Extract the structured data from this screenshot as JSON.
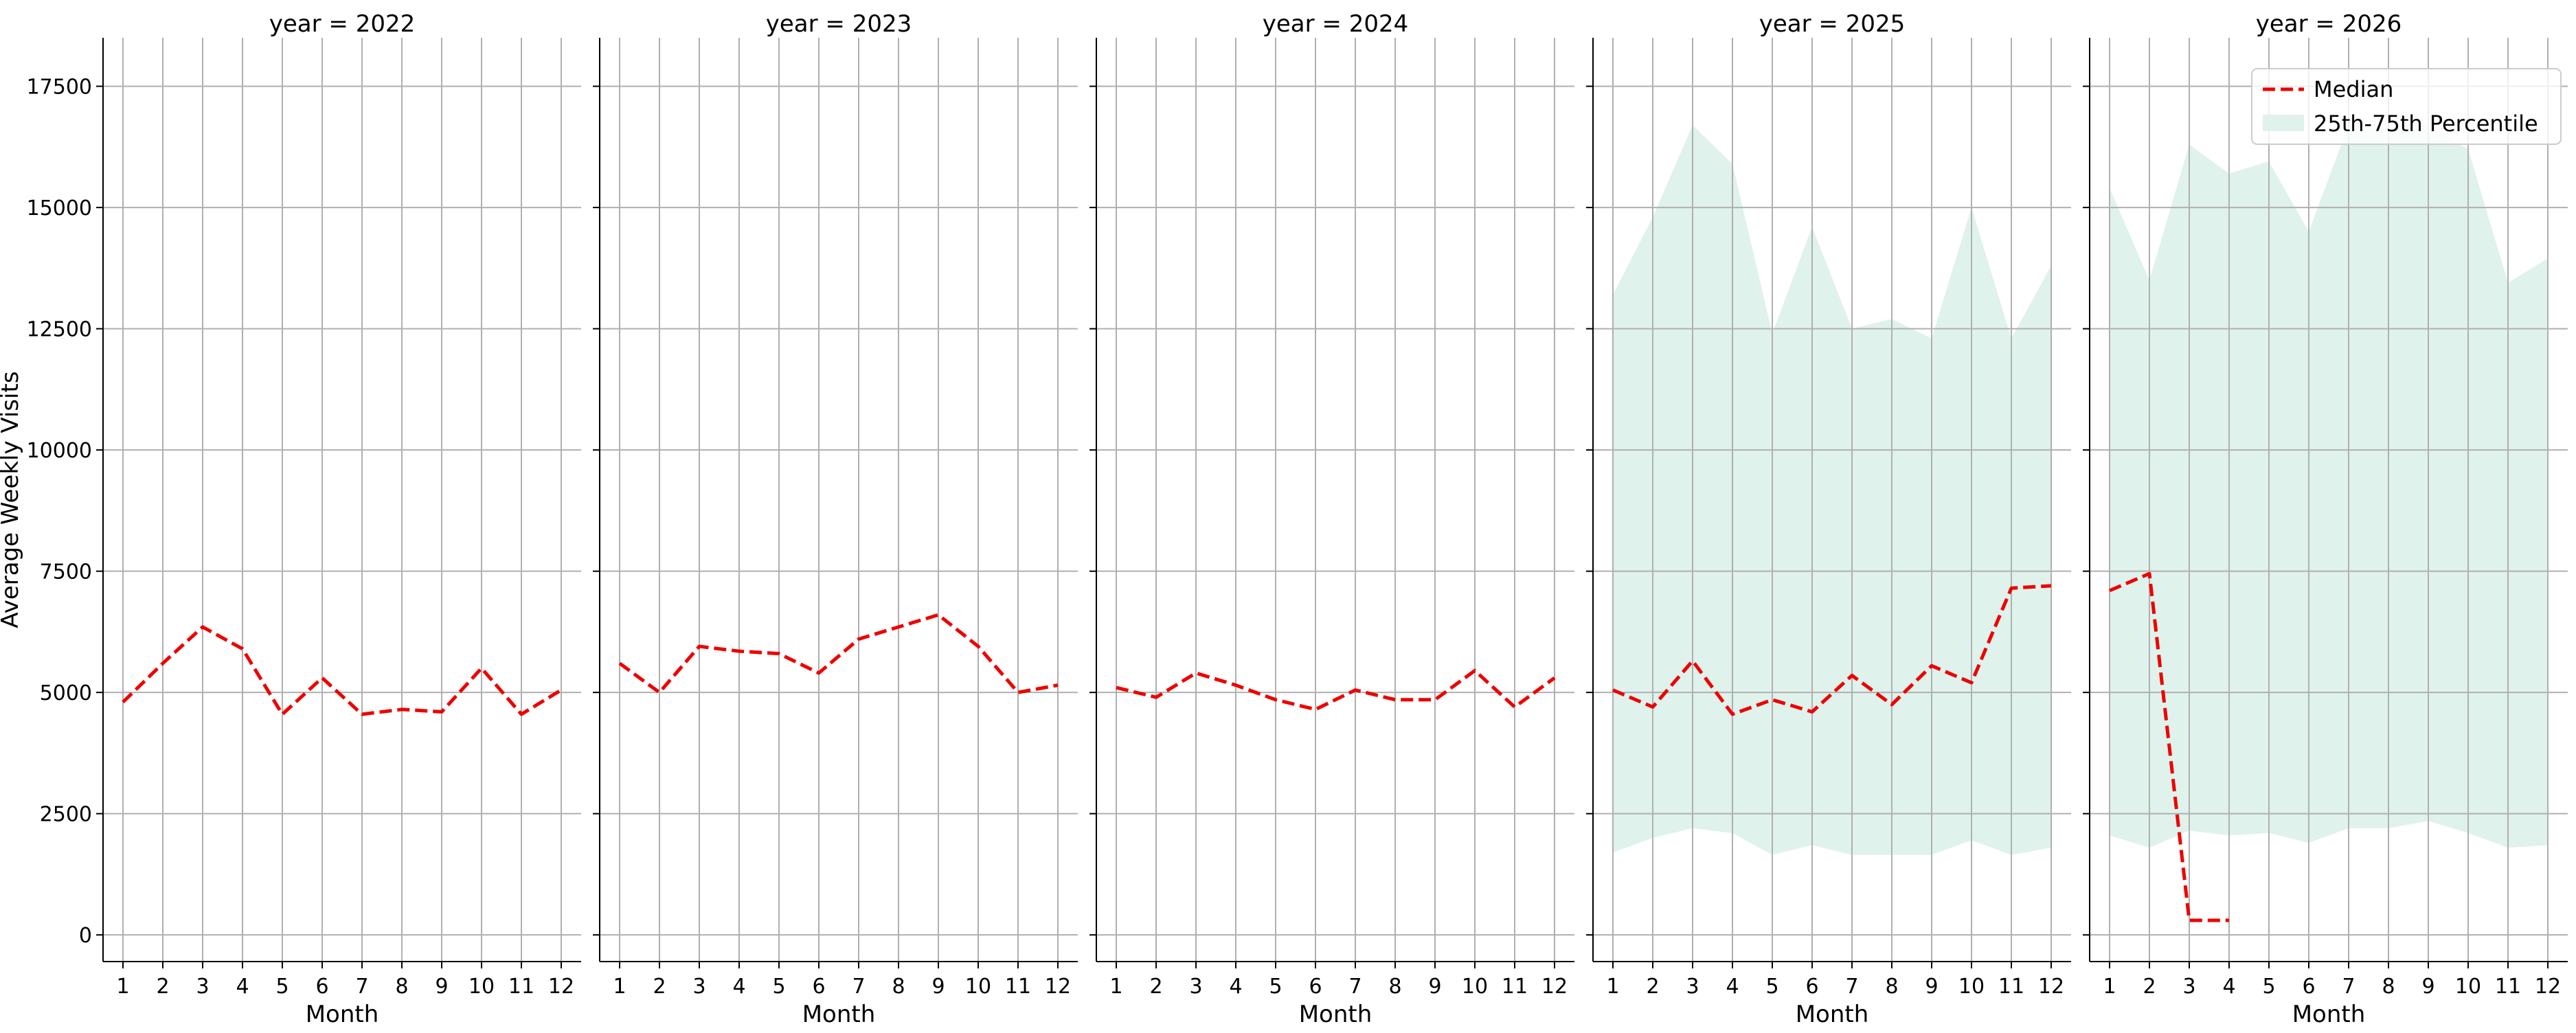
{
  "chart_data": {
    "type": "line",
    "ylabel": "Average Weekly Visits",
    "xlabel": "Month",
    "ylim": [
      -550,
      18500
    ],
    "xlim": [
      0.5,
      12.5
    ],
    "yticks": [
      0,
      2500,
      5000,
      7500,
      10000,
      12500,
      15000,
      17500
    ],
    "ytick_labels": [
      "0",
      "2500",
      "5000",
      "7500",
      "10000",
      "12500",
      "15000",
      "17500"
    ],
    "xticks": [
      1,
      2,
      3,
      4,
      5,
      6,
      7,
      8,
      9,
      10,
      11,
      12
    ],
    "xtick_labels": [
      "1",
      "2",
      "3",
      "4",
      "5",
      "6",
      "7",
      "8",
      "9",
      "10",
      "11",
      "12"
    ],
    "grid": true,
    "colors": {
      "median": "#ee0000",
      "band": "#dff2ec",
      "grid": "#b0b0b0",
      "axis": "#000000"
    },
    "legend": {
      "placement": "top-right of last panel",
      "median_label": "Median",
      "band_label": "25th-75th Percentile"
    },
    "panels": [
      {
        "title": "year = 2022",
        "median": [
          {
            "x": 1,
            "y": 4800
          },
          {
            "x": 2,
            "y": 5600
          },
          {
            "x": 3,
            "y": 6350
          },
          {
            "x": 4,
            "y": 5900
          },
          {
            "x": 5,
            "y": 4550
          },
          {
            "x": 6,
            "y": 5300
          },
          {
            "x": 7,
            "y": 4550
          },
          {
            "x": 8,
            "y": 4650
          },
          {
            "x": 9,
            "y": 4600
          },
          {
            "x": 10,
            "y": 5500
          },
          {
            "x": 11,
            "y": 4550
          },
          {
            "x": 12,
            "y": 5050
          }
        ],
        "band": []
      },
      {
        "title": "year = 2023",
        "median": [
          {
            "x": 1,
            "y": 5600
          },
          {
            "x": 2,
            "y": 5000
          },
          {
            "x": 3,
            "y": 5950
          },
          {
            "x": 4,
            "y": 5850
          },
          {
            "x": 5,
            "y": 5800
          },
          {
            "x": 6,
            "y": 5400
          },
          {
            "x": 7,
            "y": 6100
          },
          {
            "x": 8,
            "y": 6350
          },
          {
            "x": 9,
            "y": 6600
          },
          {
            "x": 10,
            "y": 5950
          },
          {
            "x": 11,
            "y": 5000
          },
          {
            "x": 12,
            "y": 5150
          }
        ],
        "band": []
      },
      {
        "title": "year = 2024",
        "median": [
          {
            "x": 1,
            "y": 5100
          },
          {
            "x": 2,
            "y": 4900
          },
          {
            "x": 3,
            "y": 5400
          },
          {
            "x": 4,
            "y": 5150
          },
          {
            "x": 5,
            "y": 4850
          },
          {
            "x": 6,
            "y": 4650
          },
          {
            "x": 7,
            "y": 5050
          },
          {
            "x": 8,
            "y": 4850
          },
          {
            "x": 9,
            "y": 4850
          },
          {
            "x": 10,
            "y": 5450
          },
          {
            "x": 11,
            "y": 4700
          },
          {
            "x": 12,
            "y": 5300
          }
        ],
        "band": []
      },
      {
        "title": "year = 2025",
        "median": [
          {
            "x": 1,
            "y": 5050
          },
          {
            "x": 2,
            "y": 4700
          },
          {
            "x": 3,
            "y": 5650
          },
          {
            "x": 4,
            "y": 4550
          },
          {
            "x": 5,
            "y": 4850
          },
          {
            "x": 6,
            "y": 4600
          },
          {
            "x": 7,
            "y": 5350
          },
          {
            "x": 8,
            "y": 4750
          },
          {
            "x": 9,
            "y": 5550
          },
          {
            "x": 10,
            "y": 5200
          },
          {
            "x": 11,
            "y": 7150
          },
          {
            "x": 12,
            "y": 7200
          }
        ],
        "band": [
          {
            "x": 1,
            "low": 1700,
            "high": 13200
          },
          {
            "x": 2,
            "low": 2000,
            "high": 14800
          },
          {
            "x": 3,
            "low": 2200,
            "high": 16700
          },
          {
            "x": 4,
            "low": 2100,
            "high": 15900
          },
          {
            "x": 5,
            "low": 1650,
            "high": 12400
          },
          {
            "x": 6,
            "low": 1850,
            "high": 14600
          },
          {
            "x": 7,
            "low": 1650,
            "high": 12500
          },
          {
            "x": 8,
            "low": 1650,
            "high": 12700
          },
          {
            "x": 9,
            "low": 1650,
            "high": 12300
          },
          {
            "x": 10,
            "low": 1950,
            "high": 15000
          },
          {
            "x": 11,
            "low": 1650,
            "high": 12300
          },
          {
            "x": 12,
            "low": 1800,
            "high": 13800
          }
        ]
      },
      {
        "title": "year = 2026",
        "median": [
          {
            "x": 1,
            "y": 7100
          },
          {
            "x": 2,
            "y": 7450
          },
          {
            "x": 3,
            "y": 300
          },
          {
            "x": 4,
            "y": 300
          }
        ],
        "band": [
          {
            "x": 1,
            "low": 2050,
            "high": 15400
          },
          {
            "x": 2,
            "low": 1800,
            "high": 13500
          },
          {
            "x": 3,
            "low": 2150,
            "high": 16300
          },
          {
            "x": 4,
            "low": 2050,
            "high": 15700
          },
          {
            "x": 5,
            "low": 2100,
            "high": 15950
          },
          {
            "x": 6,
            "low": 1900,
            "high": 14500
          },
          {
            "x": 7,
            "low": 2200,
            "high": 16700
          },
          {
            "x": 8,
            "low": 2200,
            "high": 16700
          },
          {
            "x": 9,
            "low": 2350,
            "high": 16700
          },
          {
            "x": 10,
            "low": 2100,
            "high": 16200
          },
          {
            "x": 11,
            "low": 1800,
            "high": 13450
          },
          {
            "x": 12,
            "low": 1850,
            "high": 13950
          }
        ]
      }
    ]
  }
}
